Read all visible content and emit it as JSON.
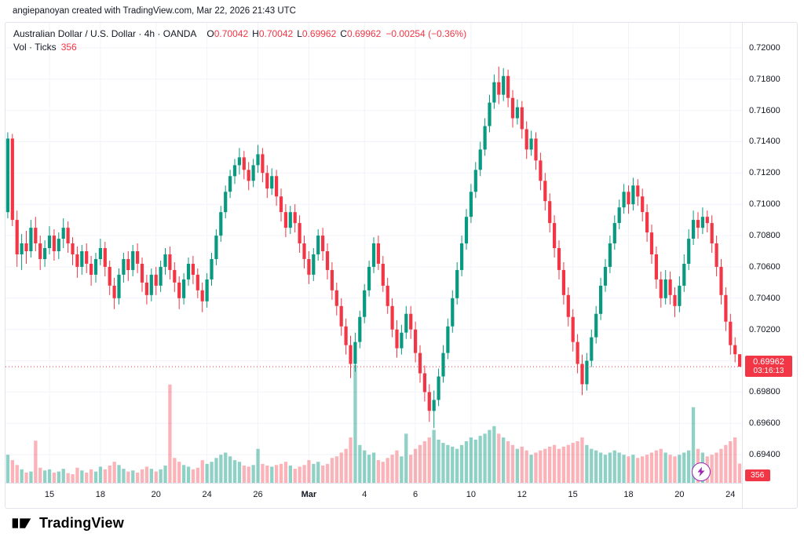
{
  "attribution": "angiepanoyan created with TradingView.com, Mar 22, 2026 21:43 UTC",
  "legend": {
    "title": "Australian Dollar / U.S. Dollar · 4h · OANDA",
    "items": [
      {
        "label": "O",
        "value": "0.70042"
      },
      {
        "label": "H",
        "value": "0.70042"
      },
      {
        "label": "L",
        "value": "0.69962"
      },
      {
        "label": "C",
        "value": "0.69962"
      }
    ],
    "change": "−0.00254 (−0.36%)",
    "vol_label": "Vol · Ticks",
    "vol_value": "356"
  },
  "price_axis": {
    "current_price": "0.69962",
    "countdown": "03:16:13",
    "volume_badge": "356"
  },
  "footer": {
    "brand": "TradingView"
  },
  "icons": {
    "lightning": "⚡"
  },
  "colors": {
    "up": "#089981",
    "down": "#F23645",
    "vol_up": "rgba(8,153,129,0.45)",
    "vol_down": "rgba(242,54,69,0.38)",
    "grid": "#F0F3FA",
    "badge": "#F23645",
    "purple": "#9C27B0",
    "text": "#131722"
  },
  "chart_data": {
    "type": "candlestick_with_volume",
    "title": "Australian Dollar / U.S. Dollar",
    "interval": "4h",
    "exchange": "OANDA",
    "current_price": 0.69962,
    "current_volume": 356,
    "axis_range": [
      0.6922,
      0.7216
    ],
    "y_ticks": [
      0.72,
      0.718,
      0.716,
      0.714,
      0.712,
      0.71,
      0.708,
      0.706,
      0.704,
      0.702,
      0.7,
      0.698,
      0.696,
      0.694
    ],
    "time_ticks": [
      {
        "i": 9,
        "label": "15"
      },
      {
        "i": 20,
        "label": "18"
      },
      {
        "i": 32,
        "label": "20"
      },
      {
        "i": 43,
        "label": "24"
      },
      {
        "i": 54,
        "label": "26"
      },
      {
        "i": 65,
        "label": "Mar",
        "bold": true
      },
      {
        "i": 77,
        "label": "4"
      },
      {
        "i": 88,
        "label": "6"
      },
      {
        "i": 100,
        "label": "10"
      },
      {
        "i": 111,
        "label": "12"
      },
      {
        "i": 122,
        "label": "15"
      },
      {
        "i": 134,
        "label": "18"
      },
      {
        "i": 145,
        "label": "20"
      },
      {
        "i": 156,
        "label": "24"
      }
    ],
    "ohlcv": [
      [
        0.7095,
        0.7146,
        0.7091,
        0.7142,
        520
      ],
      [
        0.7142,
        0.7145,
        0.7086,
        0.709,
        420
      ],
      [
        0.709,
        0.7096,
        0.706,
        0.7068,
        330
      ],
      [
        0.7068,
        0.7081,
        0.7058,
        0.7075,
        250
      ],
      [
        0.7075,
        0.7083,
        0.7062,
        0.707,
        190
      ],
      [
        0.707,
        0.709,
        0.7066,
        0.7085,
        210
      ],
      [
        0.7085,
        0.7092,
        0.707,
        0.7075,
        780
      ],
      [
        0.7075,
        0.708,
        0.7058,
        0.7065,
        280
      ],
      [
        0.7065,
        0.7077,
        0.706,
        0.7072,
        230
      ],
      [
        0.7072,
        0.7086,
        0.7068,
        0.708,
        250
      ],
      [
        0.708,
        0.7084,
        0.7064,
        0.707,
        190
      ],
      [
        0.707,
        0.7082,
        0.7065,
        0.7078,
        210
      ],
      [
        0.7078,
        0.7091,
        0.7072,
        0.7085,
        260
      ],
      [
        0.7085,
        0.7089,
        0.7069,
        0.7075,
        180
      ],
      [
        0.7075,
        0.7079,
        0.7061,
        0.7068,
        160
      ],
      [
        0.7068,
        0.7073,
        0.7053,
        0.706,
        280
      ],
      [
        0.706,
        0.7074,
        0.7055,
        0.707,
        230
      ],
      [
        0.707,
        0.7075,
        0.7056,
        0.7062,
        190
      ],
      [
        0.7062,
        0.7067,
        0.7048,
        0.7055,
        250
      ],
      [
        0.7055,
        0.7069,
        0.705,
        0.7065,
        210
      ],
      [
        0.7065,
        0.7078,
        0.7061,
        0.7072,
        300
      ],
      [
        0.7072,
        0.7076,
        0.7054,
        0.706,
        250
      ],
      [
        0.706,
        0.7064,
        0.7042,
        0.7048,
        320
      ],
      [
        0.7048,
        0.7053,
        0.7033,
        0.704,
        390
      ],
      [
        0.704,
        0.7059,
        0.7036,
        0.7055,
        330
      ],
      [
        0.7055,
        0.7069,
        0.705,
        0.7065,
        260
      ],
      [
        0.7065,
        0.707,
        0.7051,
        0.7058,
        210
      ],
      [
        0.7058,
        0.7074,
        0.7054,
        0.707,
        230
      ],
      [
        0.707,
        0.7075,
        0.7056,
        0.7062,
        190
      ],
      [
        0.7062,
        0.7066,
        0.7044,
        0.705,
        250
      ],
      [
        0.705,
        0.7055,
        0.7036,
        0.7042,
        300
      ],
      [
        0.7042,
        0.7059,
        0.7038,
        0.7055,
        260
      ],
      [
        0.7055,
        0.706,
        0.7042,
        0.7048,
        210
      ],
      [
        0.7048,
        0.7064,
        0.7044,
        0.706,
        250
      ],
      [
        0.706,
        0.7072,
        0.7055,
        0.7068,
        320
      ],
      [
        0.7068,
        0.7073,
        0.7052,
        0.7058,
        1820
      ],
      [
        0.7058,
        0.7063,
        0.7044,
        0.705,
        460
      ],
      [
        0.705,
        0.7054,
        0.7033,
        0.704,
        390
      ],
      [
        0.704,
        0.7056,
        0.7036,
        0.7052,
        330
      ],
      [
        0.7052,
        0.7066,
        0.7048,
        0.7062,
        300
      ],
      [
        0.7062,
        0.7067,
        0.7049,
        0.7055,
        250
      ],
      [
        0.7055,
        0.7059,
        0.704,
        0.7045,
        280
      ],
      [
        0.7045,
        0.705,
        0.7031,
        0.7038,
        420
      ],
      [
        0.7038,
        0.7056,
        0.7034,
        0.7052,
        350
      ],
      [
        0.7052,
        0.7069,
        0.7048,
        0.7065,
        390
      ],
      [
        0.7065,
        0.7084,
        0.7061,
        0.708,
        460
      ],
      [
        0.708,
        0.7099,
        0.7076,
        0.7095,
        520
      ],
      [
        0.7095,
        0.7112,
        0.7091,
        0.7108,
        560
      ],
      [
        0.7108,
        0.7122,
        0.7104,
        0.7118,
        490
      ],
      [
        0.7118,
        0.7129,
        0.7113,
        0.7125,
        420
      ],
      [
        0.7125,
        0.7136,
        0.7119,
        0.713,
        390
      ],
      [
        0.713,
        0.7134,
        0.7116,
        0.7122,
        320
      ],
      [
        0.7122,
        0.7127,
        0.7109,
        0.7115,
        300
      ],
      [
        0.7115,
        0.7129,
        0.7111,
        0.7125,
        330
      ],
      [
        0.7125,
        0.7138,
        0.712,
        0.7132,
        630
      ],
      [
        0.7132,
        0.7136,
        0.7114,
        0.712,
        350
      ],
      [
        0.712,
        0.7125,
        0.7104,
        0.711,
        320
      ],
      [
        0.711,
        0.7123,
        0.7106,
        0.7118,
        300
      ],
      [
        0.7118,
        0.7122,
        0.7099,
        0.7105,
        330
      ],
      [
        0.7105,
        0.711,
        0.7089,
        0.7095,
        350
      ],
      [
        0.7095,
        0.71,
        0.7079,
        0.7085,
        390
      ],
      [
        0.7085,
        0.7099,
        0.7081,
        0.7095,
        320
      ],
      [
        0.7095,
        0.71,
        0.7082,
        0.7088,
        260
      ],
      [
        0.7088,
        0.7093,
        0.7069,
        0.7075,
        300
      ],
      [
        0.7075,
        0.708,
        0.7059,
        0.7065,
        330
      ],
      [
        0.7065,
        0.707,
        0.7049,
        0.7055,
        420
      ],
      [
        0.7055,
        0.7072,
        0.7051,
        0.7068,
        350
      ],
      [
        0.7068,
        0.7084,
        0.7064,
        0.708,
        390
      ],
      [
        0.708,
        0.7085,
        0.7064,
        0.707,
        320
      ],
      [
        0.707,
        0.7075,
        0.7052,
        0.7058,
        350
      ],
      [
        0.7058,
        0.7063,
        0.7039,
        0.7045,
        460
      ],
      [
        0.7045,
        0.705,
        0.7029,
        0.7035,
        490
      ],
      [
        0.7035,
        0.704,
        0.7016,
        0.7022,
        560
      ],
      [
        0.7022,
        0.7027,
        0.7004,
        0.701,
        630
      ],
      [
        0.701,
        0.7016,
        0.6989,
        0.6998,
        840
      ],
      [
        0.6998,
        0.7018,
        0.6993,
        0.7012,
        2180
      ],
      [
        0.7012,
        0.7032,
        0.7008,
        0.7028,
        700
      ],
      [
        0.7028,
        0.7049,
        0.7024,
        0.7045,
        600
      ],
      [
        0.7045,
        0.7064,
        0.7041,
        0.706,
        520
      ],
      [
        0.706,
        0.7079,
        0.7056,
        0.7075,
        560
      ],
      [
        0.7075,
        0.708,
        0.7058,
        0.7062,
        420
      ],
      [
        0.7062,
        0.7067,
        0.7044,
        0.7048,
        390
      ],
      [
        0.7048,
        0.7053,
        0.703,
        0.7035,
        460
      ],
      [
        0.7035,
        0.704,
        0.7015,
        0.702,
        520
      ],
      [
        0.702,
        0.7026,
        0.7002,
        0.7008,
        600
      ],
      [
        0.7008,
        0.7023,
        0.7004,
        0.7018,
        490
      ],
      [
        0.7018,
        0.7035,
        0.7014,
        0.703,
        910
      ],
      [
        0.703,
        0.7035,
        0.7014,
        0.702,
        520
      ],
      [
        0.702,
        0.7025,
        0.6999,
        0.7005,
        630
      ],
      [
        0.7005,
        0.701,
        0.6986,
        0.6992,
        700
      ],
      [
        0.6992,
        0.6997,
        0.6974,
        0.698,
        770
      ],
      [
        0.698,
        0.6985,
        0.6961,
        0.6968,
        840
      ],
      [
        0.6968,
        0.6981,
        0.6957,
        0.6975,
        980
      ],
      [
        0.6975,
        0.6995,
        0.6971,
        0.699,
        800
      ],
      [
        0.699,
        0.701,
        0.6986,
        0.7005,
        740
      ],
      [
        0.7005,
        0.7027,
        0.7001,
        0.7022,
        700
      ],
      [
        0.7022,
        0.7045,
        0.7018,
        0.704,
        670
      ],
      [
        0.704,
        0.7063,
        0.7036,
        0.7058,
        630
      ],
      [
        0.7058,
        0.708,
        0.7054,
        0.7075,
        700
      ],
      [
        0.7075,
        0.7097,
        0.7071,
        0.7092,
        770
      ],
      [
        0.7092,
        0.7113,
        0.7088,
        0.7108,
        840
      ],
      [
        0.7108,
        0.7127,
        0.7104,
        0.7122,
        800
      ],
      [
        0.7122,
        0.714,
        0.7118,
        0.7135,
        870
      ],
      [
        0.7135,
        0.7155,
        0.7131,
        0.715,
        910
      ],
      [
        0.715,
        0.717,
        0.7146,
        0.7165,
        980
      ],
      [
        0.7165,
        0.7183,
        0.7161,
        0.7178,
        1050
      ],
      [
        0.7178,
        0.7188,
        0.7164,
        0.717,
        910
      ],
      [
        0.717,
        0.7187,
        0.7166,
        0.7182,
        840
      ],
      [
        0.7182,
        0.7186,
        0.7162,
        0.7168,
        770
      ],
      [
        0.7168,
        0.7173,
        0.7149,
        0.7155,
        700
      ],
      [
        0.7155,
        0.7167,
        0.7151,
        0.7162,
        630
      ],
      [
        0.7162,
        0.7166,
        0.7142,
        0.7148,
        670
      ],
      [
        0.7148,
        0.7153,
        0.7129,
        0.7135,
        600
      ],
      [
        0.7135,
        0.7147,
        0.7131,
        0.7142,
        520
      ],
      [
        0.7142,
        0.7146,
        0.7122,
        0.7128,
        560
      ],
      [
        0.7128,
        0.7133,
        0.7109,
        0.7115,
        600
      ],
      [
        0.7115,
        0.712,
        0.7096,
        0.7102,
        630
      ],
      [
        0.7102,
        0.7107,
        0.7082,
        0.7088,
        670
      ],
      [
        0.7088,
        0.7093,
        0.7066,
        0.7072,
        700
      ],
      [
        0.7072,
        0.7077,
        0.7052,
        0.7058,
        630
      ],
      [
        0.7058,
        0.7063,
        0.7036,
        0.7042,
        670
      ],
      [
        0.7042,
        0.7047,
        0.7022,
        0.7028,
        700
      ],
      [
        0.7028,
        0.7033,
        0.7006,
        0.7012,
        740
      ],
      [
        0.7012,
        0.7017,
        0.6992,
        0.6998,
        770
      ],
      [
        0.6998,
        0.7004,
        0.6978,
        0.6985,
        840
      ],
      [
        0.6985,
        0.7005,
        0.6981,
        0.7,
        700
      ],
      [
        0.7,
        0.702,
        0.6996,
        0.7015,
        630
      ],
      [
        0.7015,
        0.7035,
        0.7011,
        0.703,
        600
      ],
      [
        0.703,
        0.7053,
        0.7026,
        0.7048,
        560
      ],
      [
        0.7048,
        0.7065,
        0.7044,
        0.706,
        520
      ],
      [
        0.706,
        0.708,
        0.7056,
        0.7075,
        560
      ],
      [
        0.7075,
        0.7093,
        0.7071,
        0.7088,
        600
      ],
      [
        0.7088,
        0.7103,
        0.7084,
        0.7098,
        560
      ],
      [
        0.7098,
        0.7113,
        0.7094,
        0.7108,
        520
      ],
      [
        0.7108,
        0.7112,
        0.7094,
        0.71,
        490
      ],
      [
        0.71,
        0.7117,
        0.7096,
        0.7112,
        520
      ],
      [
        0.7112,
        0.7116,
        0.7099,
        0.7105,
        460
      ],
      [
        0.7105,
        0.711,
        0.7089,
        0.7095,
        490
      ],
      [
        0.7095,
        0.71,
        0.7076,
        0.7082,
        520
      ],
      [
        0.7082,
        0.7087,
        0.7062,
        0.7068,
        560
      ],
      [
        0.7068,
        0.7073,
        0.7046,
        0.7052,
        600
      ],
      [
        0.7052,
        0.7057,
        0.7034,
        0.704,
        630
      ],
      [
        0.704,
        0.7058,
        0.7036,
        0.7052,
        560
      ],
      [
        0.7052,
        0.7057,
        0.7036,
        0.7042,
        520
      ],
      [
        0.7042,
        0.7047,
        0.7028,
        0.7035,
        490
      ],
      [
        0.7035,
        0.7054,
        0.7031,
        0.7048,
        520
      ],
      [
        0.7048,
        0.7068,
        0.7044,
        0.7062,
        560
      ],
      [
        0.7062,
        0.7084,
        0.7058,
        0.7078,
        600
      ],
      [
        0.7078,
        0.7096,
        0.7074,
        0.709,
        1400
      ],
      [
        0.709,
        0.7095,
        0.7078,
        0.7085,
        630
      ],
      [
        0.7085,
        0.7098,
        0.7081,
        0.7092,
        560
      ],
      [
        0.7092,
        0.7096,
        0.7082,
        0.7088,
        490
      ],
      [
        0.7088,
        0.7093,
        0.7069,
        0.7075,
        520
      ],
      [
        0.7075,
        0.708,
        0.7054,
        0.706,
        560
      ],
      [
        0.706,
        0.7065,
        0.7036,
        0.7042,
        630
      ],
      [
        0.7042,
        0.7047,
        0.7019,
        0.7025,
        700
      ],
      [
        0.7025,
        0.703,
        0.7004,
        0.701,
        770
      ],
      [
        0.701,
        0.7015,
        0.6999,
        0.70042,
        840
      ],
      [
        0.70042,
        0.70042,
        0.69962,
        0.69962,
        356
      ]
    ]
  }
}
